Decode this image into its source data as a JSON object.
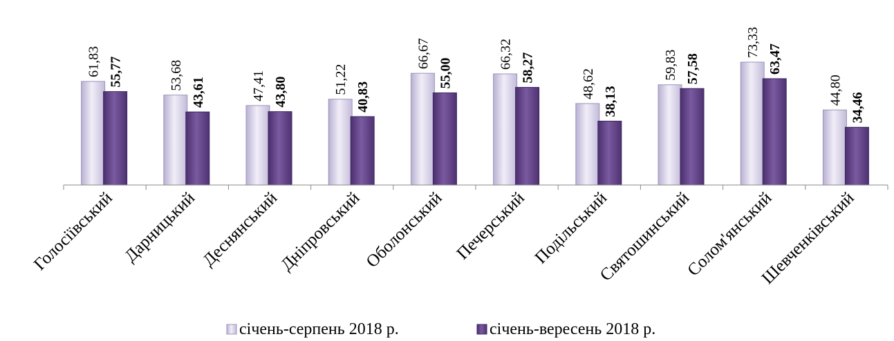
{
  "chart_data": {
    "type": "bar",
    "categories": [
      "Голосіївський",
      "Дарницький",
      "Деснянський",
      "Дніпровський",
      "Оболонський",
      "Печерський",
      "Подільський",
      "Святошинський",
      "Солом'янський",
      "Шевченківський"
    ],
    "series": [
      {
        "name": "січень-серпень 2018 р.",
        "color": "#d6d0e6",
        "values": [
          61.83,
          53.68,
          47.41,
          51.22,
          66.67,
          66.32,
          48.62,
          59.83,
          73.33,
          44.8
        ],
        "value_labels": [
          "61,83",
          "53,68",
          "47,41",
          "51,22",
          "66,67",
          "66,32",
          "48,62",
          "59,83",
          "73,33",
          "44,80"
        ]
      },
      {
        "name": "січень-вересень 2018 р.",
        "color": "#6a4a8e",
        "values": [
          55.77,
          43.61,
          43.8,
          40.83,
          55.0,
          58.27,
          38.13,
          57.58,
          63.47,
          34.46
        ],
        "value_labels": [
          "55,77",
          "43,61",
          "43,80",
          "40,83",
          "55,00",
          "58,27",
          "38,13",
          "57,58",
          "63,47",
          "34,46"
        ]
      }
    ],
    "legend": "bottom"
  }
}
